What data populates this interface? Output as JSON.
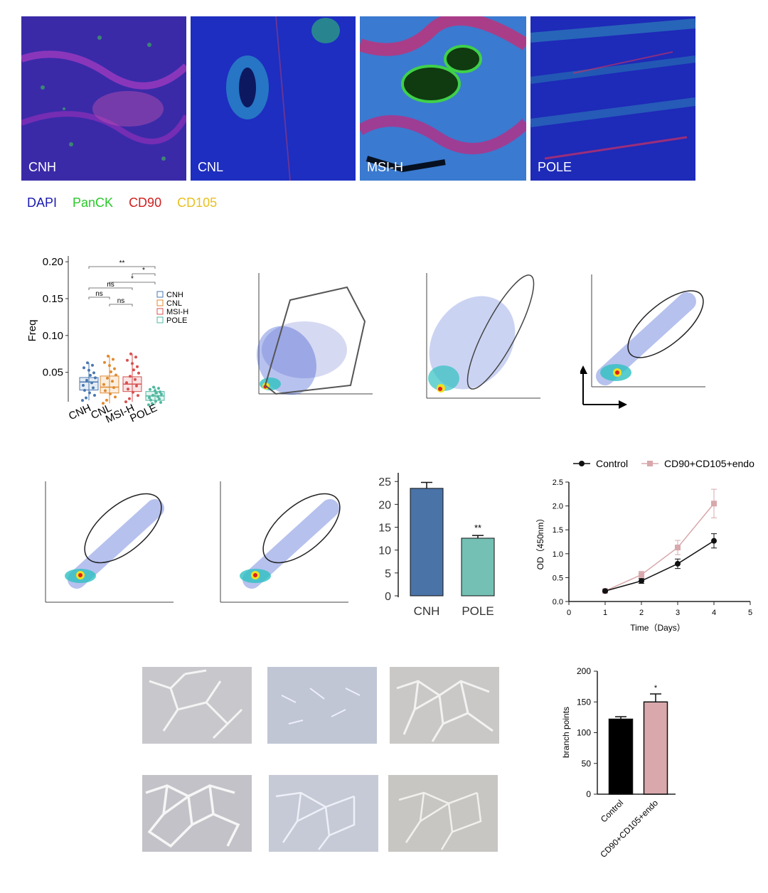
{
  "mif_panels": [
    {
      "label": "CNH",
      "colors": {
        "base": "#3a2aa8",
        "struct": "#c040c8",
        "dots": "#3fd04a"
      }
    },
    {
      "label": "CNL",
      "colors": {
        "base": "#1d2ec0",
        "struct": "#30b0c8",
        "dots": "#40d040"
      }
    },
    {
      "label": "MSI-H",
      "colors": {
        "base": "#3a7ad0",
        "struct": "#d02a70",
        "dots": "#3fd04a"
      }
    },
    {
      "label": "POLE",
      "colors": {
        "base": "#1e2ab8",
        "struct": "#30a0b8",
        "dots": "#d03060"
      }
    }
  ],
  "stain_legend": [
    {
      "label": "DAPI",
      "color": "#1b1bb0"
    },
    {
      "label": "PanCK",
      "color": "#2ac82a"
    },
    {
      "label": "CD90",
      "color": "#d02020"
    },
    {
      "label": "CD105",
      "color": "#e8c020"
    }
  ],
  "chart_data": [
    {
      "type": "box",
      "ylabel": "Freq",
      "yticks": [
        "0.05",
        "0.10",
        "0.15",
        "0.20"
      ],
      "ylim": [
        0.015,
        0.205
      ],
      "categories": [
        "CNH",
        "CNL",
        "MSI-H",
        "POLE"
      ],
      "series": [
        {
          "name": "CNH",
          "color": "#4a78b0",
          "q1": 0.026,
          "median": 0.037,
          "q3": 0.043,
          "min": 0.012,
          "max": 0.063
        },
        {
          "name": "CNL",
          "color": "#e08a30",
          "q1": 0.022,
          "median": 0.03,
          "q3": 0.045,
          "min": 0.008,
          "max": 0.072
        },
        {
          "name": "MSI-H",
          "color": "#d85050",
          "q1": 0.024,
          "median": 0.034,
          "q3": 0.044,
          "min": 0.01,
          "max": 0.075
        },
        {
          "name": "POLE",
          "color": "#4fb8a0",
          "q1": 0.012,
          "median": 0.018,
          "q3": 0.024,
          "min": 0.006,
          "max": 0.03
        }
      ],
      "significance": [
        "**",
        "*",
        "*",
        "ns",
        "ns",
        "ns"
      ],
      "legend_position": "right"
    },
    {
      "type": "bar",
      "categories": [
        "CNH",
        "POLE"
      ],
      "values": [
        23.5,
        12.6
      ],
      "errors": [
        1.3,
        0.6
      ],
      "colors": [
        "#4a73a8",
        "#74c0b4"
      ],
      "annotations": [
        "",
        "**"
      ],
      "yticks": [
        "0",
        "5",
        "10",
        "15",
        "20",
        "25"
      ],
      "ylim": [
        0,
        25.5
      ]
    },
    {
      "type": "line",
      "xlabel": "Time（Days）",
      "ylabel": "OD（450nm）",
      "x": [
        1,
        2,
        3,
        4
      ],
      "xticks": [
        "0",
        "1",
        "2",
        "3",
        "4",
        "5"
      ],
      "yticks": [
        "0.0",
        "0.5",
        "1.0",
        "1.5",
        "2.0",
        "2.5"
      ],
      "xlim": [
        0,
        5
      ],
      "ylim": [
        0,
        2.5
      ],
      "series": [
        {
          "name": "Control",
          "color": "#111111",
          "values": [
            0.22,
            0.43,
            0.79,
            1.27
          ],
          "errors": [
            0.02,
            0.05,
            0.1,
            0.15
          ]
        },
        {
          "name": "CD90+CD105+endo",
          "color": "#d8a8ac",
          "values": [
            0.22,
            0.56,
            1.13,
            2.05
          ],
          "errors": [
            0.02,
            0.07,
            0.15,
            0.3
          ]
        }
      ],
      "legend_position": "top"
    },
    {
      "type": "bar",
      "ylabel": "branch points",
      "categories": [
        "Control",
        "CD90+CD105+endo"
      ],
      "values": [
        122,
        150
      ],
      "errors": [
        4,
        13
      ],
      "colors": [
        "#000000",
        "#d8a8ac"
      ],
      "annotations": [
        "",
        "*"
      ],
      "yticks": [
        "0",
        "50",
        "100",
        "150",
        "200"
      ],
      "ylim": [
        0,
        200
      ]
    }
  ]
}
